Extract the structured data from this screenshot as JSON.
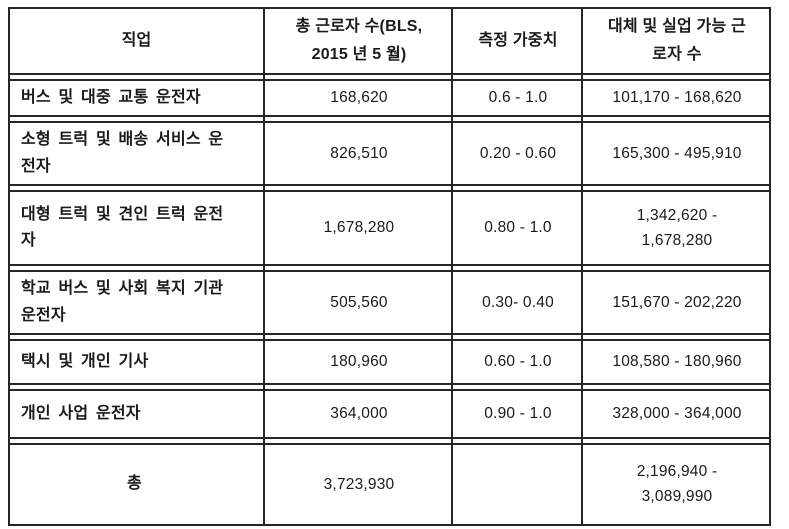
{
  "table": {
    "title_semantic": "직업별 근로자 수 및 대체 가능성 표",
    "columns": [
      "직업",
      "총 근로자 수(BLS,\n2015 년 5 월)",
      "측정 가중치",
      "대체 및 실업 가능 근\n로자 수"
    ],
    "rows": [
      {
        "job": "버스 및 대중 교통 운전자",
        "total": "168,620",
        "weight": "0.6 - 1.0",
        "range": "101,170 - 168,620"
      },
      {
        "job": "소형 트럭 및 배송 서비스 운\n전자",
        "total": "826,510",
        "weight": "0.20 - 0.60",
        "range": "165,300 - 495,910"
      },
      {
        "job": "대형 트럭 및 견인 트럭 운전\n자",
        "total": "1,678,280",
        "weight": "0.80 - 1.0",
        "range": "1,342,620 -\n1,678,280"
      },
      {
        "job": "학교 버스 및 사회 복지 기관\n운전자",
        "total": "505,560",
        "weight": "0.30- 0.40",
        "range": "151,670 - 202,220"
      },
      {
        "job": "택시 및 개인 기사",
        "total": "180,960",
        "weight": "0.60 - 1.0",
        "range": "108,580 - 180,960"
      },
      {
        "job": "개인 사업 운전자",
        "total": "364,000",
        "weight": "0.90 - 1.0",
        "range": "328,000 - 364,000"
      }
    ],
    "total_row": {
      "job": "총",
      "total": "3,723,930",
      "weight": "",
      "range": "2,196,940 -\n3,089,990"
    },
    "colors": {
      "border": "#262626",
      "text": "#1a1a1a",
      "background": "#ffffff"
    }
  },
  "chart_data": {
    "type": "table",
    "columns": [
      "직업",
      "총 근로자 수(BLS, 2015 년 5 월)",
      "측정 가중치",
      "대체 및 실업 가능 근로자 수"
    ],
    "rows": [
      [
        "버스 및 대중 교통 운전자",
        "168,620",
        "0.6 - 1.0",
        "101,170 - 168,620"
      ],
      [
        "소형 트럭 및 배송 서비스 운전자",
        "826,510",
        "0.20 - 0.60",
        "165,300 - 495,910"
      ],
      [
        "대형 트럭 및 견인 트럭 운전자",
        "1,678,280",
        "0.80 - 1.0",
        "1,342,620 - 1,678,280"
      ],
      [
        "학교 버스 및 사회 복지 기관 운전자",
        "505,560",
        "0.30- 0.40",
        "151,670 - 202,220"
      ],
      [
        "택시 및 개인 기사",
        "180,960",
        "0.60 - 1.0",
        "108,580 - 180,960"
      ],
      [
        "개인 사업 운전자",
        "364,000",
        "0.90 - 1.0",
        "328,000 - 364,000"
      ],
      [
        "총",
        "3,723,930",
        "",
        "2,196,940 - 3,089,990"
      ]
    ]
  }
}
